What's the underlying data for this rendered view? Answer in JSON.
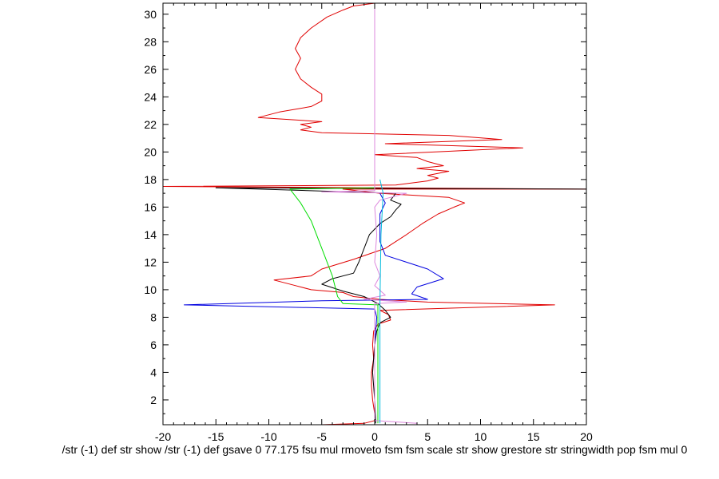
{
  "chart_data": {
    "type": "line",
    "title": "",
    "xlabel": "/str (-1) def str show /str (-1) def gsave 0 77.175 fsu mul rmoveto fsm fsm scale str show grestore str stringwidth pop fsm mul 0",
    "ylabel": "",
    "xlim": [
      -20,
      20
    ],
    "ylim": [
      0.2,
      30.8
    ],
    "x_ticks": [
      -20,
      -15,
      -10,
      -5,
      0,
      5,
      10,
      15,
      20
    ],
    "y_ticks": [
      2,
      4,
      6,
      8,
      10,
      12,
      14,
      16,
      18,
      20,
      22,
      24,
      26,
      28,
      30
    ],
    "grid": false,
    "legend": "none",
    "series": [
      {
        "color": "#e00000",
        "points": [
          [
            -5,
            0.2
          ],
          [
            -1,
            0.3
          ],
          [
            0,
            0.5
          ],
          [
            0,
            1
          ],
          [
            -0.2,
            2
          ],
          [
            -0.3,
            3
          ],
          [
            -0.3,
            4
          ],
          [
            -0.1,
            5
          ],
          [
            -0.2,
            6
          ],
          [
            -0.1,
            7
          ],
          [
            0.3,
            7.5
          ],
          [
            1.5,
            7.8
          ],
          [
            1.3,
            8.2
          ],
          [
            0.5,
            8.5
          ],
          [
            17,
            8.9
          ],
          [
            5,
            9.1
          ],
          [
            0.5,
            9.3
          ],
          [
            -2,
            9.5
          ],
          [
            -3,
            9.8
          ],
          [
            -6,
            10
          ],
          [
            -7.5,
            10.3
          ],
          [
            -9.5,
            10.7
          ],
          [
            -6,
            11
          ],
          [
            -5,
            11.5
          ],
          [
            -2,
            12.2
          ],
          [
            1,
            13
          ],
          [
            3,
            14
          ],
          [
            4.5,
            14.8
          ],
          [
            6,
            15.5
          ],
          [
            7.5,
            16
          ],
          [
            8.5,
            16.3
          ],
          [
            7,
            16.7
          ],
          [
            0.5,
            17
          ],
          [
            -3,
            17.3
          ],
          [
            20,
            17.3
          ],
          [
            -20,
            17.5
          ],
          [
            2,
            17.6
          ],
          [
            5,
            17.9
          ],
          [
            6,
            18.1
          ],
          [
            5,
            18.3
          ],
          [
            7,
            18.6
          ],
          [
            4,
            18.8
          ],
          [
            6.5,
            19
          ],
          [
            5,
            19.3
          ],
          [
            4,
            19.6
          ],
          [
            0,
            19.8
          ],
          [
            14,
            20.3
          ],
          [
            1,
            20.6
          ],
          [
            12,
            20.9
          ],
          [
            7,
            21.2
          ],
          [
            -5,
            21.4
          ],
          [
            -7,
            21.6
          ],
          [
            -6,
            21.8
          ],
          [
            -7,
            22.0
          ],
          [
            -5,
            22.2
          ],
          [
            -11,
            22.5
          ],
          [
            -9,
            22.9
          ],
          [
            -6,
            23.3
          ],
          [
            -5,
            23.7
          ],
          [
            -5,
            24.2
          ],
          [
            -6,
            24.7
          ],
          [
            -7,
            25.3
          ],
          [
            -7.5,
            26
          ],
          [
            -7,
            26.8
          ],
          [
            -7.5,
            27.5
          ],
          [
            -7,
            28.3
          ],
          [
            -6,
            29
          ],
          [
            -4.5,
            29.8
          ],
          [
            -3,
            30.3
          ],
          [
            -2,
            30.6
          ],
          [
            0,
            30.8
          ]
        ]
      },
      {
        "color": "#000000",
        "points": [
          [
            0.1,
            0.3
          ],
          [
            0,
            2
          ],
          [
            -0.2,
            4
          ],
          [
            0,
            6
          ],
          [
            0.2,
            7
          ],
          [
            0.5,
            7.6
          ],
          [
            1.5,
            8
          ],
          [
            1,
            8.5
          ],
          [
            0.3,
            9
          ],
          [
            -1,
            9.5
          ],
          [
            -3,
            9.9
          ],
          [
            -5,
            10.4
          ],
          [
            -4,
            10.8
          ],
          [
            -2,
            11.2
          ],
          [
            -1.5,
            12
          ],
          [
            -1,
            13
          ],
          [
            -0.5,
            14
          ],
          [
            0.5,
            14.8
          ],
          [
            1.5,
            15.3
          ],
          [
            2,
            15.8
          ],
          [
            2.5,
            16.2
          ],
          [
            1.5,
            16.5
          ],
          [
            2,
            17
          ],
          [
            -15,
            17.4
          ],
          [
            20,
            17.3
          ]
        ]
      },
      {
        "color": "#0000e0",
        "points": [
          [
            0,
            0.3
          ],
          [
            0,
            6
          ],
          [
            0.2,
            8
          ],
          [
            0,
            8.6
          ],
          [
            -18,
            8.9
          ],
          [
            -5,
            9.2
          ],
          [
            5,
            9.3
          ],
          [
            3.5,
            9.7
          ],
          [
            4,
            10.2
          ],
          [
            6.5,
            10.8
          ],
          [
            5,
            11.5
          ],
          [
            3,
            12
          ],
          [
            1,
            12.5
          ],
          [
            0.5,
            13.5
          ],
          [
            0.5,
            14.5
          ],
          [
            0.5,
            15.5
          ],
          [
            1,
            16.3
          ],
          [
            0.5,
            17
          ]
        ]
      },
      {
        "color": "#00dd00",
        "points": [
          [
            0.3,
            0.3
          ],
          [
            0.3,
            8.9
          ],
          [
            -3,
            9
          ],
          [
            -3.5,
            9.5
          ],
          [
            -4,
            11
          ],
          [
            -5,
            13
          ],
          [
            -6,
            15
          ],
          [
            -7,
            16.3
          ],
          [
            -8,
            17.3
          ],
          [
            0,
            17.4
          ]
        ]
      },
      {
        "color": "#dd88dd",
        "points": [
          [
            4,
            0.3
          ],
          [
            2,
            0.4
          ],
          [
            0,
            0.5
          ],
          [
            0,
            8
          ],
          [
            0,
            9
          ],
          [
            3,
            9.1
          ],
          [
            -1,
            9.3
          ],
          [
            1,
            9.6
          ],
          [
            0,
            10.3
          ],
          [
            0.5,
            11
          ],
          [
            0,
            12
          ],
          [
            0.2,
            14
          ],
          [
            0,
            16
          ],
          [
            0.5,
            16.5
          ],
          [
            3,
            17
          ],
          [
            -5,
            17.1
          ],
          [
            0,
            17.2
          ],
          [
            0,
            30.8
          ]
        ]
      },
      {
        "color": "#00bbdd",
        "points": [
          [
            0.5,
            0.3
          ],
          [
            0.5,
            9
          ],
          [
            0.6,
            14
          ],
          [
            0.8,
            17
          ],
          [
            0.5,
            18
          ]
        ]
      }
    ]
  }
}
